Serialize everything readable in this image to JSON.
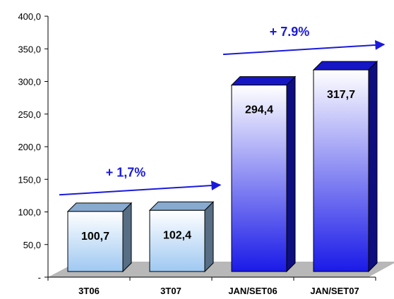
{
  "chart_data": {
    "type": "bar",
    "categories": [
      "3T06",
      "3T07",
      "JAN/SET06",
      "JAN/SET07"
    ],
    "values": [
      100.7,
      102.4,
      294.4,
      317.7
    ],
    "value_labels": [
      "100,7",
      "102,4",
      "294,4",
      "317,7"
    ],
    "ylim": [
      0,
      400
    ],
    "yticks": [
      0,
      50,
      100,
      150,
      200,
      250,
      300,
      350,
      400
    ],
    "ytick_labels": [
      "-",
      "50,0",
      "100,0",
      "150,0",
      "200,0",
      "250,0",
      "300,0",
      "350,0",
      "400,0"
    ],
    "grid": false,
    "style": "3d-column",
    "bar_gradients": [
      [
        "#ffffff",
        "#9fc8f2"
      ],
      [
        "#ffffff",
        "#9fc8f2"
      ],
      [
        "#ffffff",
        "#1a1ae8"
      ],
      [
        "#ffffff",
        "#1a1ae8"
      ]
    ],
    "floor_color": "#b8b8b8",
    "annotations": [
      {
        "text": "+ 1,7%",
        "from_category": 0,
        "to_category": 1,
        "color": "#1a1adc"
      },
      {
        "text": "+ 7.9%",
        "from_category": 2,
        "to_category": 3,
        "color": "#1a1adc"
      }
    ]
  }
}
